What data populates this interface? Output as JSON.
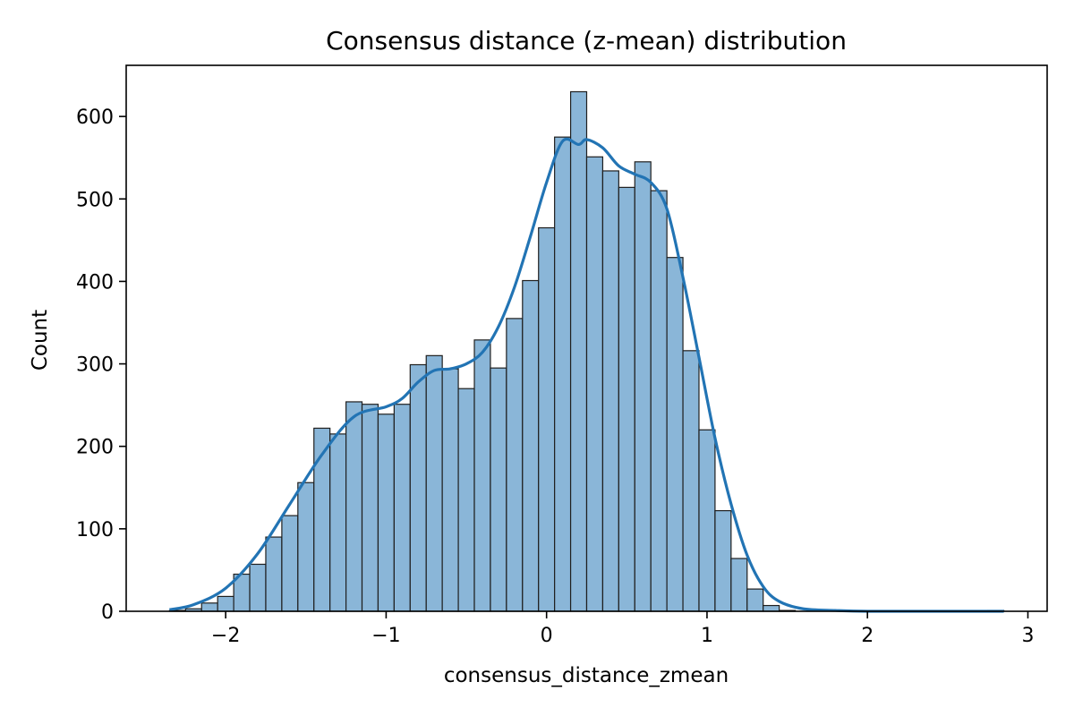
{
  "chart_data": {
    "type": "bar",
    "subtype": "histogram",
    "title": "Consensus distance (z-mean) distribution",
    "xlabel": "consensus_distance_zmean",
    "ylabel": "Count",
    "xlim": [
      -2.62,
      3.12
    ],
    "ylim": [
      0,
      662
    ],
    "grid": false,
    "xticks": [
      -2,
      -1,
      0,
      1,
      2,
      3
    ],
    "xtick_labels": [
      "−2",
      "−1",
      "0",
      "1",
      "2",
      "3"
    ],
    "yticks": [
      0,
      100,
      200,
      300,
      400,
      500,
      600
    ],
    "ytick_labels": [
      "0",
      "100",
      "200",
      "300",
      "400",
      "500",
      "600"
    ],
    "bin_edges": [
      -2.35,
      -2.25,
      -2.15,
      -2.05,
      -1.95,
      -1.85,
      -1.75,
      -1.65,
      -1.55,
      -1.45,
      -1.35,
      -1.25,
      -1.15,
      -1.05,
      -0.95,
      -0.85,
      -0.75,
      -0.65,
      -0.55,
      -0.45,
      -0.35,
      -0.25,
      -0.15,
      -0.05,
      0.05,
      0.15,
      0.25,
      0.35,
      0.45,
      0.55,
      0.65,
      0.75,
      0.85,
      0.95,
      1.05,
      1.15,
      1.25,
      1.35,
      1.45,
      1.55,
      1.65,
      1.75,
      1.85,
      1.95,
      2.05,
      2.15,
      2.25,
      2.35,
      2.45,
      2.55,
      2.65,
      2.75,
      2.85
    ],
    "counts": [
      1,
      3,
      10,
      18,
      45,
      57,
      90,
      116,
      156,
      222,
      215,
      254,
      251,
      239,
      251,
      299,
      310,
      294,
      270,
      329,
      295,
      355,
      401,
      465,
      575,
      630,
      551,
      534,
      514,
      545,
      510,
      429,
      316,
      220,
      122,
      64,
      27,
      7,
      1,
      0,
      0,
      0,
      0,
      0,
      0,
      0,
      0,
      0,
      0,
      0,
      0,
      1
    ],
    "kde": {
      "x": [
        -2.35,
        -2.2,
        -2.0,
        -1.8,
        -1.6,
        -1.4,
        -1.2,
        -1.0,
        -0.9,
        -0.8,
        -0.7,
        -0.6,
        -0.5,
        -0.4,
        -0.3,
        -0.2,
        -0.1,
        0.0,
        0.1,
        0.2,
        0.25,
        0.35,
        0.45,
        0.55,
        0.65,
        0.75,
        0.85,
        0.95,
        1.05,
        1.15,
        1.25,
        1.35,
        1.45,
        1.6,
        1.8,
        2.0,
        2.4,
        2.85
      ],
      "y": [
        2,
        8,
        28,
        70,
        130,
        190,
        236,
        248,
        258,
        278,
        292,
        294,
        300,
        314,
        345,
        393,
        455,
        520,
        570,
        566,
        572,
        562,
        540,
        530,
        520,
        488,
        405,
        308,
        210,
        130,
        68,
        30,
        12,
        3,
        1,
        0,
        0,
        0
      ]
    },
    "bar_fill": "#8ab6d8",
    "bar_edge": "#1f1f1f",
    "kde_color": "#2274b4"
  }
}
